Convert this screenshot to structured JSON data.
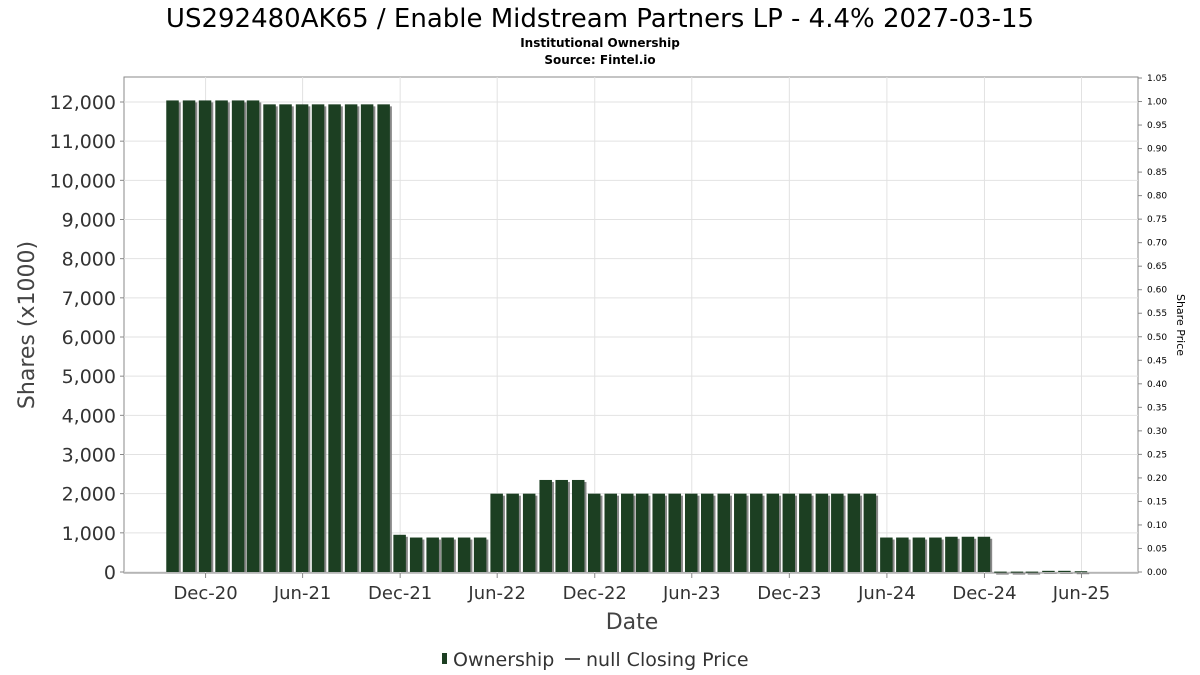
{
  "chart_data": {
    "type": "bar",
    "title": "US292480AK65 / Enable Midstream Partners LP - 4.4% 2027-03-15",
    "subtitle_lines": [
      "Institutional Ownership",
      "Source: Fintel.io"
    ],
    "xlabel": "Date",
    "ylabel": "Shares (x1000)",
    "y2label": "Share Price",
    "ylim": [
      0,
      12000
    ],
    "y2lim": [
      0,
      1.05
    ],
    "grid": true,
    "legend_position": "bottom-center",
    "yticks": [
      {
        "value": 0,
        "label": "0"
      },
      {
        "value": 1000,
        "label": "1,000"
      },
      {
        "value": 2000,
        "label": "2,000"
      },
      {
        "value": 3000,
        "label": "3,000"
      },
      {
        "value": 4000,
        "label": "4,000"
      },
      {
        "value": 5000,
        "label": "5,000"
      },
      {
        "value": 6000,
        "label": "6,000"
      },
      {
        "value": 7000,
        "label": "7,000"
      },
      {
        "value": 8000,
        "label": "8,000"
      },
      {
        "value": 9000,
        "label": "9,000"
      },
      {
        "value": 10000,
        "label": "10,000"
      },
      {
        "value": 11000,
        "label": "11,000"
      },
      {
        "value": 12000,
        "label": "12,000"
      }
    ],
    "y2ticks": [
      "0.00",
      "0.05",
      "0.10",
      "0.15",
      "0.20",
      "0.25",
      "0.30",
      "0.35",
      "0.40",
      "0.45",
      "0.50",
      "0.55",
      "0.60",
      "0.65",
      "0.70",
      "0.75",
      "0.80",
      "0.85",
      "0.90",
      "0.95",
      "1.00",
      "1.05"
    ],
    "xticks": [
      {
        "date": "2020-12-01",
        "label": "Dec-20"
      },
      {
        "date": "2021-06-01",
        "label": "Jun-21"
      },
      {
        "date": "2021-12-01",
        "label": "Dec-21"
      },
      {
        "date": "2022-06-01",
        "label": "Jun-22"
      },
      {
        "date": "2022-12-01",
        "label": "Dec-22"
      },
      {
        "date": "2023-06-01",
        "label": "Jun-23"
      },
      {
        "date": "2023-12-01",
        "label": "Dec-23"
      },
      {
        "date": "2024-06-01",
        "label": "Jun-24"
      },
      {
        "date": "2024-12-01",
        "label": "Dec-24"
      },
      {
        "date": "2025-06-01",
        "label": "Jun-25"
      }
    ],
    "xrange": [
      "2020-07-01",
      "2025-09-15"
    ],
    "series": [
      {
        "name": "Ownership",
        "color": "#1c3f22",
        "shadow_color": "#888888",
        "x": [
          "2020-09-30",
          "2020-10-31",
          "2020-11-30",
          "2020-12-31",
          "2021-01-31",
          "2021-02-28",
          "2021-03-31",
          "2021-04-30",
          "2021-05-31",
          "2021-06-30",
          "2021-07-31",
          "2021-08-31",
          "2021-09-30",
          "2021-10-31",
          "2021-11-30",
          "2021-12-31",
          "2022-01-31",
          "2022-02-28",
          "2022-03-31",
          "2022-04-30",
          "2022-05-31",
          "2022-06-30",
          "2022-07-31",
          "2022-08-31",
          "2022-09-30",
          "2022-10-31",
          "2022-11-30",
          "2022-12-31",
          "2023-01-31",
          "2023-02-28",
          "2023-03-31",
          "2023-04-30",
          "2023-05-31",
          "2023-06-30",
          "2023-07-31",
          "2023-08-31",
          "2023-09-30",
          "2023-10-31",
          "2023-11-30",
          "2023-12-31",
          "2024-01-31",
          "2024-02-29",
          "2024-03-31",
          "2024-04-30",
          "2024-05-31",
          "2024-06-30",
          "2024-07-31",
          "2024-08-31",
          "2024-09-30",
          "2024-10-31",
          "2024-11-30",
          "2024-12-31",
          "2025-01-31",
          "2025-02-28",
          "2025-03-31",
          "2025-04-30",
          "2025-05-31"
        ],
        "values": [
          12040,
          12040,
          12040,
          12040,
          12040,
          12040,
          11940,
          11940,
          11940,
          11940,
          11940,
          11940,
          11940,
          11940,
          950,
          880,
          880,
          880,
          880,
          880,
          2000,
          2000,
          2000,
          2350,
          2350,
          2350,
          2000,
          2000,
          2000,
          2000,
          2000,
          2000,
          2000,
          2000,
          2000,
          2000,
          2000,
          2000,
          2000,
          2000,
          2000,
          2000,
          2000,
          2000,
          880,
          880,
          880,
          880,
          900,
          900,
          900,
          10,
          10,
          10,
          30,
          30,
          20
        ]
      },
      {
        "name": "null Closing Price",
        "color": "#555555",
        "values": []
      }
    ]
  }
}
